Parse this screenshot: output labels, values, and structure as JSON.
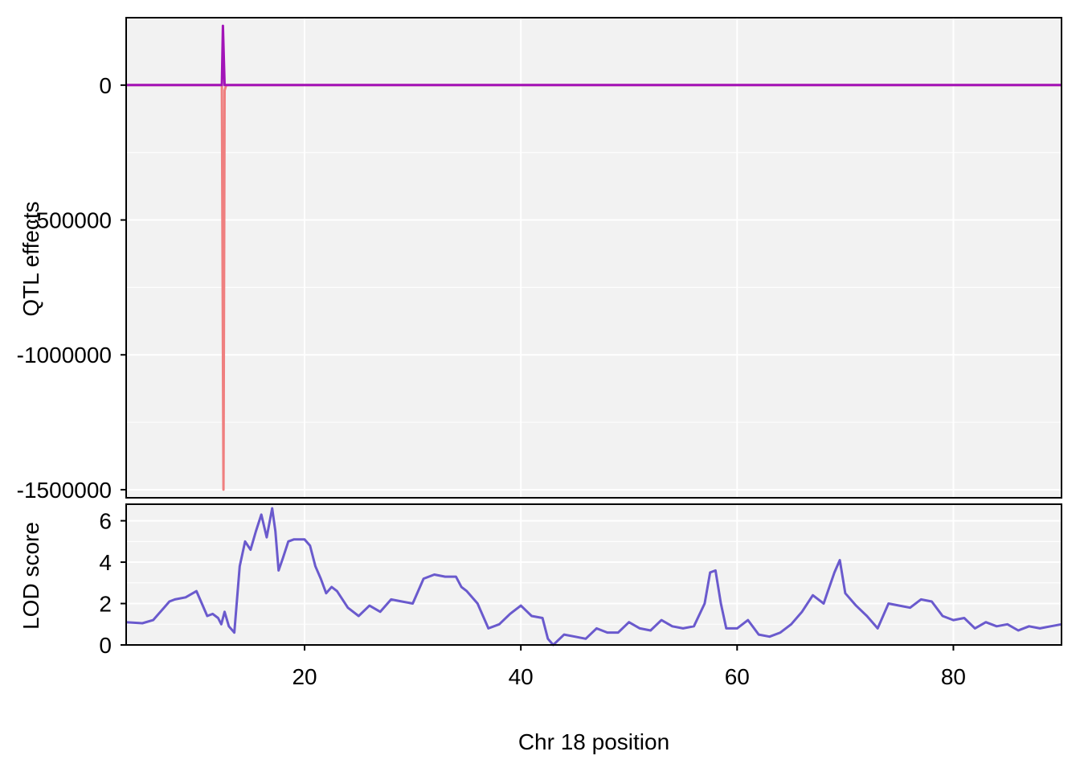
{
  "colors": {
    "panel_bg": "#f2f2f2",
    "grid": "#ffffff",
    "frame": "#000000",
    "effect_red": "#ef7f7f",
    "effect_purple": "#a214b8",
    "lod_line": "#6a5acd"
  },
  "chart_data": [
    {
      "type": "line",
      "panel": "effects",
      "ylabel": "QTL effects",
      "xlim": [
        3.5,
        90
      ],
      "ylim": [
        -1530000,
        250000
      ],
      "yticks": [
        0,
        -500000,
        -1000000,
        -1500000
      ],
      "ytick_labels": [
        "0",
        "-500000",
        "-1000000",
        "-1500000"
      ],
      "xgrid": [
        20,
        40,
        60,
        80
      ],
      "series": [
        {
          "color": "#ef7f7f",
          "x": [
            3.5,
            12.35,
            12.5,
            12.6,
            12.75,
            90
          ],
          "y": [
            0,
            0,
            -1500000,
            -20000,
            0,
            0
          ]
        },
        {
          "color": "#a214b8",
          "x": [
            3.5,
            12.35,
            12.45,
            12.6,
            12.75,
            90
          ],
          "y": [
            0,
            0,
            220000,
            0,
            0,
            0
          ]
        }
      ]
    },
    {
      "type": "line",
      "panel": "lod",
      "xlabel": "Chr 18 position",
      "ylabel": "LOD score",
      "xlim": [
        3.5,
        90
      ],
      "ylim": [
        0,
        6.8
      ],
      "yticks": [
        0,
        2,
        4,
        6
      ],
      "ytick_labels": [
        "0",
        "2",
        "4",
        "6"
      ],
      "xticks": [
        20,
        40,
        60,
        80
      ],
      "xtick_labels": [
        "20",
        "40",
        "60",
        "80"
      ],
      "series": [
        {
          "color": "#6a5acd",
          "x": [
            3.5,
            5,
            6,
            7,
            7.5,
            8,
            9,
            10,
            10.5,
            11,
            11.5,
            12,
            12.3,
            12.6,
            13,
            13.5,
            14,
            14.5,
            15,
            15.5,
            16,
            16.5,
            17,
            17.3,
            17.6,
            18,
            18.5,
            19,
            20,
            20.5,
            21,
            21.5,
            22,
            22.5,
            23,
            24,
            25,
            26,
            27,
            28,
            29,
            30,
            31,
            32,
            33,
            34,
            34.5,
            35,
            36,
            37,
            38,
            39,
            40,
            41,
            42,
            42.5,
            43,
            44,
            45,
            46,
            47,
            48,
            49,
            50,
            51,
            52,
            53,
            54,
            55,
            56,
            57,
            57.5,
            58,
            58.5,
            59,
            60,
            61,
            62,
            63,
            64,
            65,
            66,
            67,
            68,
            69,
            69.5,
            70,
            71,
            72,
            73,
            74,
            75,
            76,
            77,
            78,
            79,
            80,
            81,
            82,
            83,
            84,
            85,
            86,
            87,
            88,
            89,
            90
          ],
          "y": [
            1.1,
            1.05,
            1.2,
            1.8,
            2.1,
            2.2,
            2.3,
            2.6,
            2.0,
            1.4,
            1.5,
            1.3,
            1.0,
            1.6,
            0.9,
            0.6,
            3.8,
            5.0,
            4.6,
            5.5,
            6.3,
            5.2,
            6.6,
            5.5,
            3.6,
            4.2,
            5.0,
            5.1,
            5.1,
            4.8,
            3.8,
            3.2,
            2.5,
            2.8,
            2.6,
            1.8,
            1.4,
            1.9,
            1.6,
            2.2,
            2.1,
            2.0,
            3.2,
            3.4,
            3.3,
            3.3,
            2.8,
            2.6,
            2.0,
            0.8,
            1.0,
            1.5,
            1.9,
            1.4,
            1.3,
            0.3,
            0.0,
            0.5,
            0.4,
            0.3,
            0.8,
            0.6,
            0.6,
            1.1,
            0.8,
            0.7,
            1.2,
            0.9,
            0.8,
            0.9,
            2.0,
            3.5,
            3.6,
            2.0,
            0.8,
            0.8,
            1.2,
            0.5,
            0.4,
            0.6,
            1.0,
            1.6,
            2.4,
            2.0,
            3.5,
            4.1,
            2.5,
            1.9,
            1.4,
            0.8,
            2.0,
            1.9,
            1.8,
            2.2,
            2.1,
            1.4,
            1.2,
            1.3,
            0.8,
            1.1,
            0.9,
            1.0,
            0.7,
            0.9,
            0.8,
            0.9,
            1.0
          ]
        }
      ]
    }
  ]
}
